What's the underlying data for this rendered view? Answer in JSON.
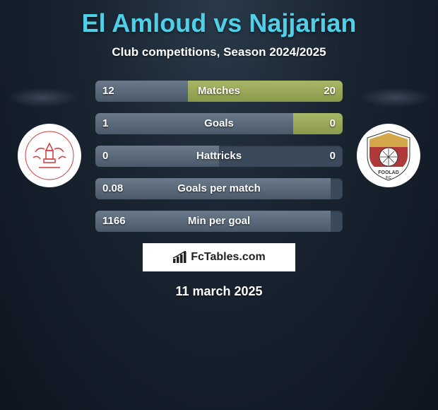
{
  "title": "El Amloud vs Najjarian",
  "subtitle": "Club competitions, Season 2024/2025",
  "date": "11 march 2025",
  "watermark_text": "FcTables.com",
  "stats": [
    {
      "label": "Matches",
      "left_val": "12",
      "right_val": "20",
      "left_pct": 37.5,
      "right_pct": 62.5
    },
    {
      "label": "Goals",
      "left_val": "1",
      "right_val": "0",
      "left_pct": 80,
      "right_pct": 20
    },
    {
      "label": "Hattricks",
      "left_val": "0",
      "right_val": "0",
      "left_pct": 50,
      "right_pct": 0
    },
    {
      "label": "Goals per match",
      "left_val": "0.08",
      "right_val": "",
      "left_pct": 95,
      "right_pct": 0
    },
    {
      "label": "Min per goal",
      "left_val": "1166",
      "right_val": "",
      "left_pct": 95,
      "right_pct": 0
    }
  ],
  "colors": {
    "title": "#4fd0e8",
    "bar_bg": "#3a4a5a",
    "fill_left": "#5a6a7a",
    "fill_right": "#99a955",
    "badge_left_accent": "#d43a3a",
    "badge_right_top": "#d4a84a",
    "badge_right_mid": "#b03a3a"
  }
}
